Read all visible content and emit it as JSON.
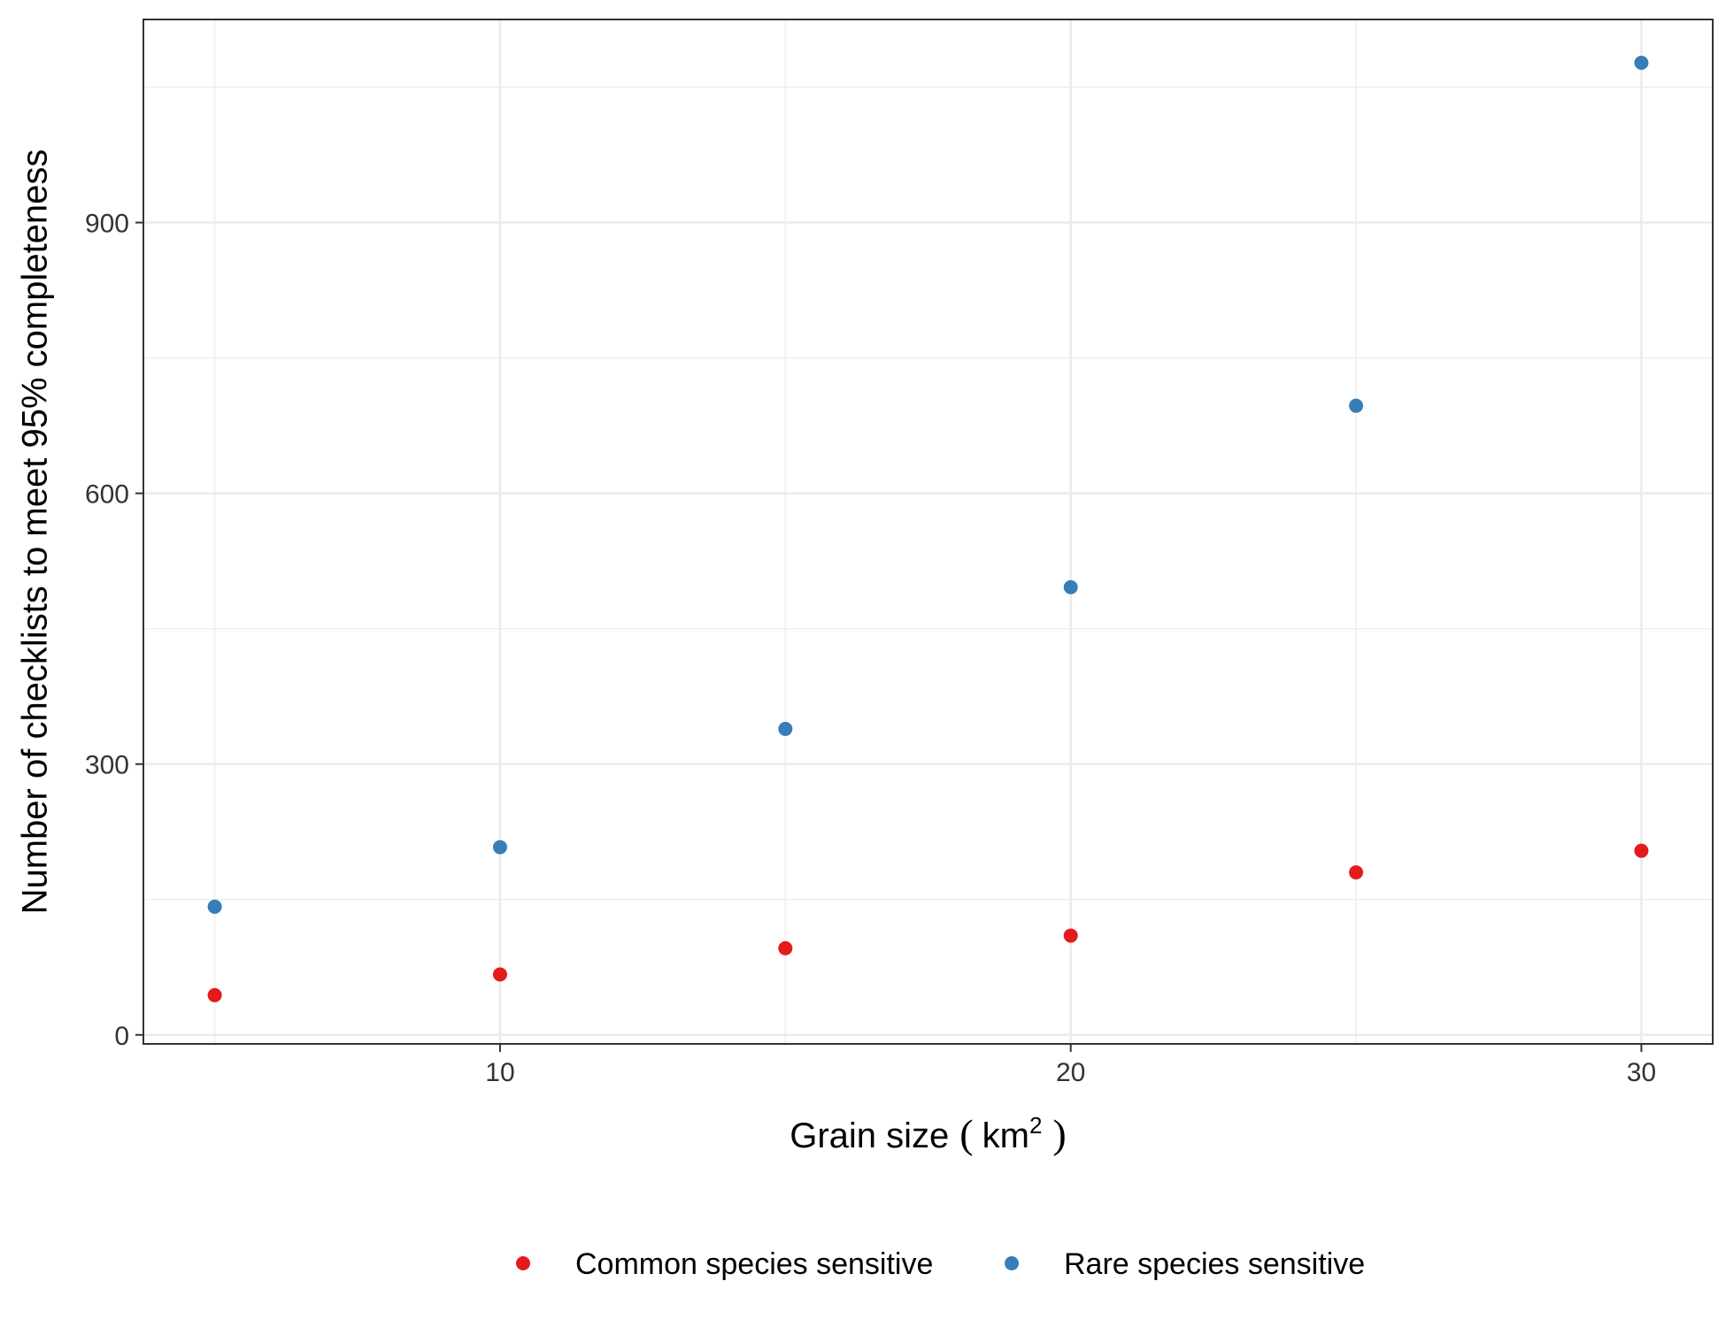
{
  "chart_data": {
    "type": "scatter",
    "title": "",
    "xlabel": "Grain size",
    "xlabel_unit_base": "km",
    "xlabel_unit_exp": "2",
    "ylabel": "Number of checklists to meet 95% completeness",
    "xlim": [
      3.75,
      31.25
    ],
    "ylim": [
      -10,
      1125
    ],
    "x_ticks": [
      10,
      20,
      30
    ],
    "y_ticks": [
      0,
      300,
      600,
      900
    ],
    "grid": true,
    "legend_position": "bottom",
    "series": [
      {
        "name": "Common species sensitive",
        "color": "#E41A1C",
        "x": [
          5,
          10,
          15,
          20,
          25,
          30
        ],
        "y": [
          44,
          67,
          96,
          110,
          180,
          204
        ]
      },
      {
        "name": "Rare species sensitive",
        "color": "#377EB8",
        "x": [
          5,
          10,
          15,
          20,
          25,
          30
        ],
        "y": [
          142,
          208,
          339,
          496,
          697,
          1077
        ]
      }
    ]
  }
}
